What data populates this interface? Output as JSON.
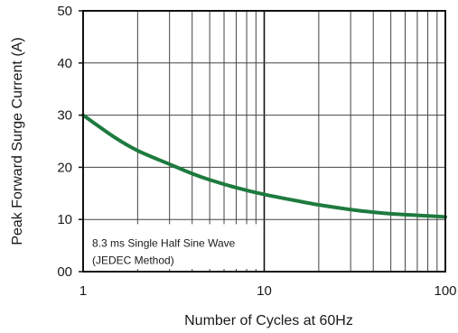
{
  "chart_data": {
    "type": "line",
    "xlabel": "Number of Cycles at 60Hz",
    "ylabel": "Peak Forward Surge Current (A)",
    "x_scale": "log",
    "xlim": [
      1,
      100
    ],
    "ylim": [
      0,
      50
    ],
    "x_ticks": [
      1,
      10,
      100
    ],
    "x_tick_labels": [
      "1",
      "10",
      "100"
    ],
    "y_ticks": [
      0,
      10,
      20,
      30,
      40,
      50
    ],
    "y_tick_labels": [
      "00",
      "10",
      "20",
      "30",
      "40",
      "50"
    ],
    "grid": true,
    "series": [
      {
        "x": [
          1,
          1.5,
          2,
          3,
          4,
          5,
          7,
          10,
          15,
          20,
          30,
          40,
          50,
          70,
          100
        ],
        "y": [
          30,
          25.7,
          23.2,
          20.6,
          18.8,
          17.6,
          16.1,
          14.8,
          13.6,
          12.8,
          11.9,
          11.4,
          11.1,
          10.8,
          10.5
        ]
      }
    ],
    "annotation": [
      "8.3 ms Single  Half Sine  Wave",
      "(JEDEC Method)"
    ],
    "colors": {
      "line": "#1e7a3e",
      "grid": "#444444",
      "axis": "#111111"
    }
  }
}
